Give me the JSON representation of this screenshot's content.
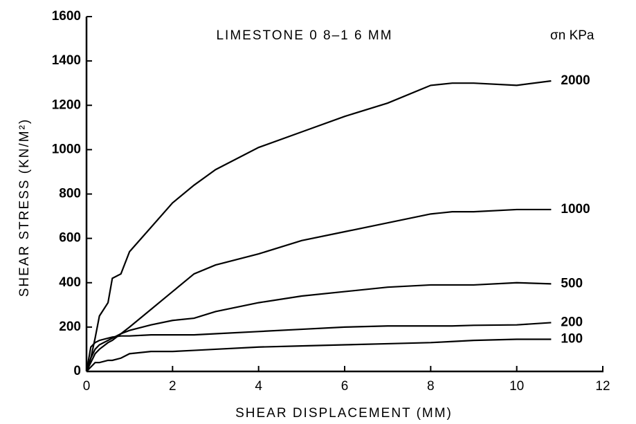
{
  "chart_data": {
    "type": "line",
    "title": "LIMESTONE  0 8–1 6 MM",
    "legend_title": "σn KPa",
    "x_label": "SHEAR    DISPLACEMENT   (MM)",
    "y_label": "SHEAR  STRESS (KN/M²)",
    "x": [
      0,
      0.1,
      0.2,
      0.3,
      0.5,
      0.6,
      0.8,
      1,
      1.5,
      2,
      2.5,
      3,
      4,
      5,
      6,
      7,
      8,
      8.5,
      9,
      10,
      10.8
    ],
    "series": [
      {
        "name": "2000",
        "color": "#000000",
        "values": [
          0,
          60,
          150,
          250,
          310,
          420,
          440,
          540,
          650,
          760,
          840,
          910,
          1010,
          1080,
          1150,
          1210,
          1290,
          1300,
          1300,
          1290,
          1310
        ]
      },
      {
        "name": "1000",
        "color": "#000000",
        "values": [
          0,
          40,
          80,
          100,
          130,
          140,
          170,
          200,
          280,
          360,
          440,
          480,
          530,
          590,
          630,
          670,
          710,
          720,
          720,
          730,
          730
        ]
      },
      {
        "name": "500",
        "color": "#000000",
        "values": [
          0,
          60,
          100,
          120,
          140,
          150,
          170,
          185,
          210,
          230,
          240,
          270,
          310,
          340,
          360,
          380,
          390,
          390,
          390,
          400,
          395
        ]
      },
      {
        "name": "200",
        "color": "#000000",
        "values": [
          0,
          110,
          130,
          140,
          150,
          155,
          160,
          160,
          165,
          165,
          165,
          170,
          180,
          190,
          200,
          205,
          205,
          205,
          208,
          210,
          220
        ]
      },
      {
        "name": "100",
        "color": "#000000",
        "values": [
          0,
          20,
          40,
          40,
          50,
          50,
          60,
          80,
          90,
          90,
          95,
          100,
          110,
          115,
          120,
          125,
          130,
          135,
          140,
          145,
          145
        ]
      }
    ],
    "xlim": [
      0,
      12
    ],
    "xticks": [
      0,
      2,
      4,
      6,
      8,
      10,
      12
    ],
    "ylim": [
      0,
      1600
    ],
    "yticks": [
      0,
      200,
      400,
      600,
      800,
      1000,
      1200,
      1400,
      1600
    ],
    "grid": false
  }
}
